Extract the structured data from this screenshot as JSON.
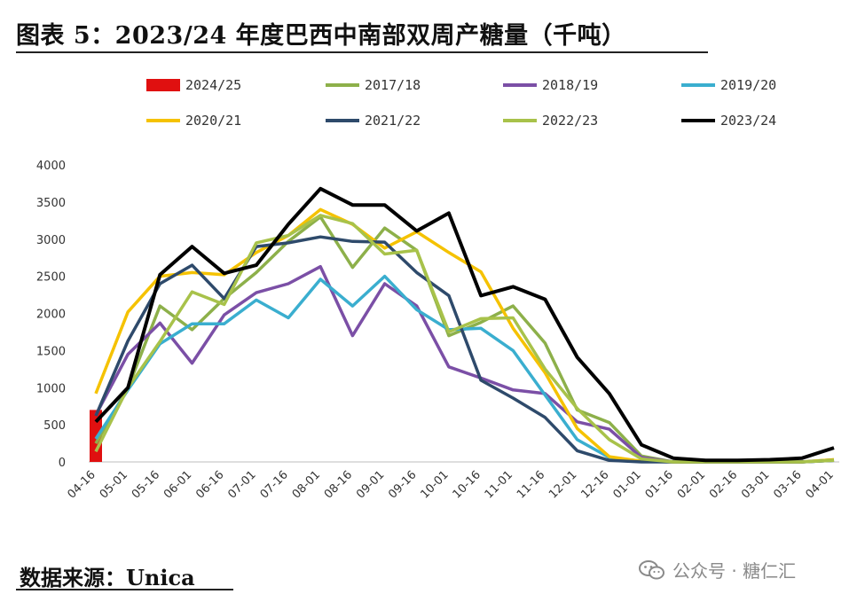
{
  "title": "图表 5：2023/24 年度巴西中南部双周产糖量（千吨）",
  "source": "数据来源：Unica",
  "watermark": "公众号 · 糖仁汇",
  "watermark_icon": "wechat-icon",
  "chart_data": {
    "type": "line",
    "title": "图表 5：2023/24 年度巴西中南部双周产糖量（千吨）",
    "xlabel": "",
    "ylabel": "",
    "ylim": [
      0,
      4000
    ],
    "yticks": [
      0,
      500,
      1000,
      1500,
      2000,
      2500,
      3000,
      3500,
      4000
    ],
    "grid": false,
    "legend_position": "top",
    "categories": [
      "04-16",
      "05-01",
      "05-16",
      "06-01",
      "06-16",
      "07-01",
      "07-16",
      "08-01",
      "08-16",
      "09-01",
      "09-16",
      "10-01",
      "10-16",
      "11-01",
      "11-16",
      "12-01",
      "12-16",
      "01-01",
      "01-16",
      "02-01",
      "02-16",
      "03-01",
      "03-16",
      "04-01"
    ],
    "x_tick_labels": [
      "04-16",
      "05-01",
      "05-16",
      "06-01",
      "06-16",
      "07-01",
      "07-16",
      "08-01",
      "08-16",
      "09-01",
      "09-16",
      "10-01",
      "10-16",
      "11-01",
      "11-16",
      "12-01",
      "12-16",
      "01-01",
      "01-16",
      "02-01",
      "02-16",
      "03-01",
      "03-16",
      "04-01"
    ],
    "bar_series": {
      "name": "2024/25",
      "color": "#e01010",
      "values": [
        700
      ]
    },
    "series": [
      {
        "name": "2017/18",
        "color": "#8db04a",
        "values": [
          250,
          1000,
          2100,
          1780,
          2200,
          2550,
          2970,
          3300,
          2620,
          3150,
          2850,
          1700,
          1880,
          2100,
          1600,
          700,
          530,
          80,
          0,
          0,
          0,
          0,
          0,
          30
        ]
      },
      {
        "name": "2018/19",
        "color": "#7b4fa6",
        "values": [
          630,
          1450,
          1870,
          1330,
          1980,
          2280,
          2400,
          2630,
          1700,
          2400,
          2100,
          1280,
          1130,
          970,
          920,
          540,
          440,
          60,
          0,
          0,
          0,
          0,
          0,
          20
        ]
      },
      {
        "name": "2019/20",
        "color": "#3aaecf",
        "values": [
          310,
          970,
          1590,
          1860,
          1860,
          2180,
          1940,
          2460,
          2100,
          2500,
          2050,
          1780,
          1800,
          1500,
          900,
          300,
          60,
          10,
          0,
          0,
          0,
          0,
          0,
          20
        ]
      },
      {
        "name": "2020/21",
        "color": "#f5c200",
        "values": [
          920,
          2020,
          2500,
          2550,
          2520,
          2820,
          3050,
          3400,
          3200,
          2880,
          3100,
          2820,
          2560,
          1800,
          1200,
          450,
          70,
          10,
          0,
          0,
          0,
          0,
          0,
          30
        ]
      },
      {
        "name": "2021/22",
        "color": "#2e4a6b",
        "values": [
          620,
          1630,
          2400,
          2650,
          2200,
          2900,
          2950,
          3030,
          2970,
          2960,
          2550,
          2240,
          1100,
          860,
          600,
          150,
          20,
          0,
          0,
          0,
          0,
          0,
          0,
          20
        ]
      },
      {
        "name": "2022/23",
        "color": "#a8c24a",
        "values": [
          140,
          1000,
          1620,
          2290,
          2120,
          2950,
          3050,
          3320,
          3210,
          2800,
          2850,
          1750,
          1930,
          1940,
          1250,
          720,
          300,
          40,
          0,
          0,
          0,
          0,
          0,
          20
        ]
      },
      {
        "name": "2023/24",
        "color": "#000000",
        "values": [
          540,
          1000,
          2520,
          2900,
          2540,
          2650,
          3200,
          3680,
          3460,
          3460,
          3110,
          3350,
          2240,
          2360,
          2190,
          1410,
          920,
          230,
          50,
          20,
          20,
          30,
          50,
          190
        ]
      }
    ],
    "legend": [
      "2024/25",
      "2017/18",
      "2018/19",
      "2019/20",
      "2020/21",
      "2021/22",
      "2022/23",
      "2023/24"
    ]
  }
}
